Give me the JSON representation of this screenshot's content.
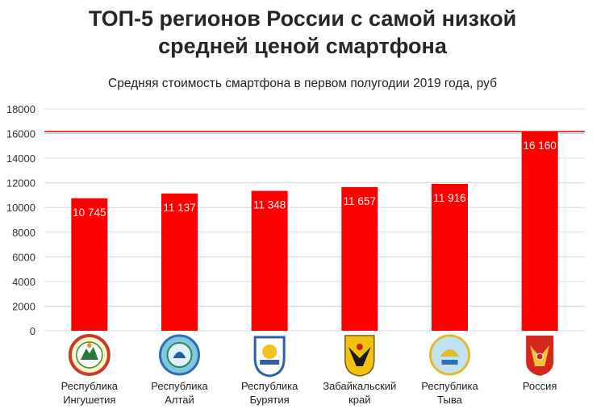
{
  "header": {
    "title_line1": "ТОП-5 регионов России с самой низкой",
    "title_line2": "средней ценой смартфона"
  },
  "chart_data": {
    "type": "bar",
    "subtitle": "Средняя стоимость смартфона в первом полугодии 2019 года, руб",
    "categories": [
      [
        "Республика",
        "Ингушетия"
      ],
      [
        "Республика",
        "Алтай"
      ],
      [
        "Республика",
        "Бурятия"
      ],
      [
        "Забайкальский",
        "край"
      ],
      [
        "Республика",
        "Тыва"
      ],
      [
        "Россия"
      ]
    ],
    "values": [
      10745,
      11137,
      11348,
      11657,
      11916,
      16160
    ],
    "value_labels": [
      "10 745",
      "11 137",
      "11 348",
      "11 657",
      "11 916",
      "16 160"
    ],
    "yticks": [
      0,
      2000,
      4000,
      6000,
      8000,
      10000,
      12000,
      14000,
      16000,
      18000
    ],
    "ylim": [
      0,
      18000
    ],
    "reference_line": 16160,
    "grid": true,
    "bar_color": "#ff0000",
    "reference_line_color": "#e00000",
    "grid_color": "#d9d9d9",
    "emblems": [
      "ingushetia-emblem",
      "altai-emblem",
      "buryatia-emblem",
      "zabaykalsky-emblem",
      "tuva-emblem",
      "russia-emblem"
    ]
  }
}
